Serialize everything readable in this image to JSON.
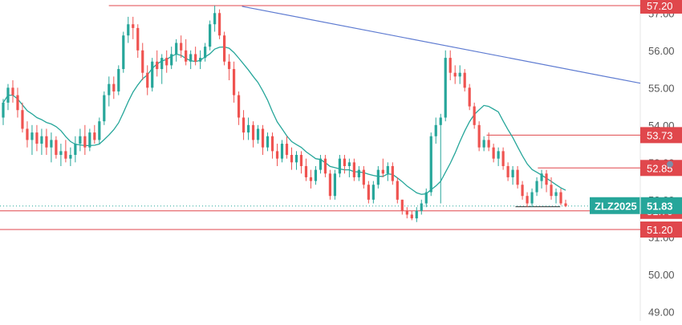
{
  "chart_data": {
    "type": "candlestick",
    "symbol": "ZLZ2025",
    "last_price": "51.83",
    "y_axis": {
      "min": 48.75,
      "max": 57.35,
      "ticks": [
        {
          "value": 49,
          "label": "49.00"
        },
        {
          "value": 50,
          "label": "50.00"
        },
        {
          "value": 51,
          "label": "51.00"
        },
        {
          "value": 52,
          "label": "52.00"
        },
        {
          "value": 53,
          "label": "53.00"
        },
        {
          "value": 54,
          "label": "54.00"
        },
        {
          "value": 55,
          "label": "55.00"
        },
        {
          "value": 56,
          "label": "56.00"
        },
        {
          "value": 57,
          "label": "57.00"
        }
      ]
    },
    "grid": false,
    "price_levels": [
      {
        "value": 57.2,
        "label": "57.20",
        "color": "#e0474c",
        "start": 0.17
      },
      {
        "value": 53.73,
        "label": "53.73",
        "color": "#e0474c",
        "start": 0.76
      },
      {
        "value": 52.85,
        "label": "52.85",
        "color": "#e0474c",
        "start": 0.84
      },
      {
        "value": 51.7,
        "label": "51.70",
        "color": "#e0474c",
        "start": 0.0
      },
      {
        "value": 51.2,
        "label": "51.20",
        "color": "#e0474c",
        "start": 0.0
      }
    ],
    "support_segment": {
      "value": 51.81,
      "from": 0.805,
      "to": 0.875
    },
    "trendline": {
      "from": {
        "bar": 0.378,
        "value": 57.18
      },
      "to": {
        "bar": 1.0,
        "value": 55.12
      },
      "color": "#5e7bd1"
    },
    "moving_average_color": "#26a69a",
    "colors": {
      "up": "#26a69a",
      "down": "#ef5350",
      "level_label": "#e0474c",
      "symbol_label": "#26a69a",
      "axis_text": "#555555"
    },
    "bars": [
      [
        54.2,
        54.7,
        54.0,
        54.6
      ],
      [
        54.6,
        55.1,
        54.4,
        55.0
      ],
      [
        55.0,
        55.2,
        54.6,
        54.8
      ],
      [
        54.8,
        55.0,
        54.2,
        54.4
      ],
      [
        54.4,
        54.6,
        53.8,
        53.9
      ],
      [
        53.9,
        54.1,
        53.4,
        53.6
      ],
      [
        53.6,
        54.0,
        53.2,
        53.8
      ],
      [
        53.8,
        54.0,
        53.3,
        53.5
      ],
      [
        53.5,
        53.9,
        53.2,
        53.7
      ],
      [
        53.7,
        53.9,
        53.2,
        53.4
      ],
      [
        53.4,
        53.8,
        53.0,
        53.6
      ],
      [
        53.6,
        53.7,
        53.1,
        53.2
      ],
      [
        53.2,
        53.5,
        52.9,
        53.3
      ],
      [
        53.3,
        53.6,
        53.0,
        53.1
      ],
      [
        53.1,
        53.4,
        52.9,
        53.2
      ],
      [
        53.2,
        53.7,
        53.0,
        53.5
      ],
      [
        53.5,
        53.9,
        53.3,
        53.7
      ],
      [
        53.7,
        54.0,
        53.2,
        53.4
      ],
      [
        53.4,
        53.9,
        53.3,
        53.8
      ],
      [
        53.8,
        54.0,
        53.5,
        53.6
      ],
      [
        53.6,
        54.2,
        53.5,
        54.1
      ],
      [
        54.1,
        54.9,
        54.0,
        54.8
      ],
      [
        54.8,
        55.3,
        54.5,
        55.1
      ],
      [
        55.1,
        55.3,
        54.7,
        54.9
      ],
      [
        54.9,
        55.6,
        54.8,
        55.5
      ],
      [
        55.5,
        56.5,
        55.4,
        56.4
      ],
      [
        56.4,
        56.9,
        56.2,
        56.7
      ],
      [
        56.7,
        56.9,
        56.3,
        56.6
      ],
      [
        56.6,
        56.7,
        55.8,
        56.0
      ],
      [
        56.0,
        56.2,
        55.2,
        55.4
      ],
      [
        55.4,
        55.6,
        54.8,
        55.0
      ],
      [
        55.0,
        55.8,
        54.9,
        55.7
      ],
      [
        55.7,
        56.0,
        55.3,
        55.5
      ],
      [
        55.5,
        55.9,
        55.1,
        55.8
      ],
      [
        55.8,
        56.0,
        55.4,
        55.6
      ],
      [
        55.6,
        56.1,
        55.5,
        55.9
      ],
      [
        55.9,
        56.3,
        55.7,
        56.2
      ],
      [
        56.2,
        56.4,
        55.8,
        56.0
      ],
      [
        56.0,
        56.3,
        55.6,
        55.7
      ],
      [
        55.7,
        56.0,
        55.5,
        55.9
      ],
      [
        55.9,
        56.1,
        55.6,
        55.7
      ],
      [
        55.7,
        56.0,
        55.5,
        55.8
      ],
      [
        55.8,
        56.2,
        55.7,
        56.1
      ],
      [
        56.1,
        56.8,
        56.0,
        56.7
      ],
      [
        56.7,
        57.2,
        56.5,
        57.0
      ],
      [
        57.0,
        57.1,
        56.3,
        56.4
      ],
      [
        56.4,
        56.5,
        55.6,
        55.7
      ],
      [
        55.7,
        55.9,
        55.2,
        55.5
      ],
      [
        55.5,
        55.7,
        54.6,
        54.8
      ],
      [
        54.8,
        54.9,
        54.0,
        54.2
      ],
      [
        54.2,
        54.4,
        53.6,
        53.8
      ],
      [
        53.8,
        54.2,
        53.6,
        54.0
      ],
      [
        54.0,
        54.1,
        53.4,
        53.6
      ],
      [
        53.6,
        54.0,
        53.5,
        53.9
      ],
      [
        53.9,
        54.0,
        53.2,
        53.4
      ],
      [
        53.4,
        53.8,
        53.3,
        53.7
      ],
      [
        53.7,
        53.8,
        53.1,
        53.3
      ],
      [
        53.3,
        53.5,
        52.9,
        53.1
      ],
      [
        53.1,
        53.6,
        53.0,
        53.5
      ],
      [
        53.5,
        53.7,
        53.1,
        53.2
      ],
      [
        53.2,
        53.4,
        52.8,
        53.0
      ],
      [
        53.0,
        53.3,
        52.8,
        53.2
      ],
      [
        53.2,
        53.3,
        52.7,
        52.9
      ],
      [
        52.9,
        53.1,
        52.5,
        52.6
      ],
      [
        52.6,
        52.8,
        52.3,
        52.5
      ],
      [
        52.5,
        52.9,
        52.4,
        52.8
      ],
      [
        52.8,
        53.2,
        52.7,
        53.1
      ],
      [
        53.1,
        53.2,
        52.6,
        52.7
      ],
      [
        52.7,
        52.8,
        52.0,
        52.1
      ],
      [
        52.1,
        52.8,
        52.0,
        52.7
      ],
      [
        52.7,
        53.2,
        52.6,
        53.1
      ],
      [
        53.1,
        53.2,
        52.7,
        52.9
      ],
      [
        52.9,
        53.1,
        52.6,
        53.0
      ],
      [
        53.0,
        53.1,
        52.5,
        52.6
      ],
      [
        52.6,
        52.9,
        52.5,
        52.8
      ],
      [
        52.8,
        52.9,
        52.3,
        52.4
      ],
      [
        52.4,
        52.5,
        51.9,
        52.0
      ],
      [
        52.0,
        52.5,
        51.9,
        52.4
      ],
      [
        52.4,
        52.9,
        52.3,
        52.8
      ],
      [
        52.8,
        53.1,
        52.6,
        52.7
      ],
      [
        52.7,
        53.0,
        52.5,
        52.9
      ],
      [
        52.9,
        53.0,
        52.4,
        52.5
      ],
      [
        52.5,
        52.6,
        51.9,
        52.0
      ],
      [
        52.0,
        52.0,
        51.6,
        51.7
      ],
      [
        51.7,
        51.8,
        51.5,
        51.6
      ],
      [
        51.6,
        51.7,
        51.45,
        51.5
      ],
      [
        51.5,
        51.8,
        51.4,
        51.7
      ],
      [
        51.7,
        52.0,
        51.6,
        51.9
      ],
      [
        51.9,
        52.3,
        51.8,
        52.2
      ],
      [
        52.2,
        53.8,
        52.1,
        53.7
      ],
      [
        53.7,
        54.2,
        53.5,
        54.0
      ],
      [
        54.0,
        54.3,
        51.9,
        54.2
      ],
      [
        54.2,
        56.0,
        54.1,
        55.8
      ],
      [
        55.8,
        56.0,
        55.2,
        55.4
      ],
      [
        55.4,
        55.6,
        55.1,
        55.3
      ],
      [
        55.3,
        55.6,
        55.1,
        55.4
      ],
      [
        55.4,
        55.5,
        54.9,
        55.0
      ],
      [
        55.0,
        55.1,
        54.4,
        54.5
      ],
      [
        54.5,
        54.6,
        53.9,
        54.0
      ],
      [
        54.0,
        54.1,
        53.3,
        53.4
      ],
      [
        53.4,
        53.7,
        53.3,
        53.6
      ],
      [
        53.6,
        53.8,
        53.3,
        53.4
      ],
      [
        53.4,
        53.5,
        53.0,
        53.1
      ],
      [
        53.1,
        53.4,
        52.9,
        53.3
      ],
      [
        53.3,
        53.4,
        52.8,
        52.9
      ],
      [
        52.9,
        53.0,
        52.5,
        52.6
      ],
      [
        52.6,
        52.9,
        52.4,
        52.8
      ],
      [
        52.8,
        52.9,
        52.3,
        52.4
      ],
      [
        52.4,
        52.5,
        52.0,
        52.1
      ],
      [
        52.1,
        52.2,
        51.8,
        51.9
      ],
      [
        51.9,
        52.3,
        51.8,
        52.2
      ],
      [
        52.2,
        52.6,
        52.1,
        52.5
      ],
      [
        52.5,
        52.8,
        52.3,
        52.7
      ],
      [
        52.7,
        52.8,
        52.2,
        52.4
      ],
      [
        52.4,
        52.6,
        52.0,
        52.1
      ],
      [
        52.1,
        52.3,
        51.9,
        52.2
      ],
      [
        52.2,
        52.3,
        51.85,
        51.9
      ],
      [
        51.9,
        52.0,
        51.8,
        51.83
      ]
    ]
  }
}
